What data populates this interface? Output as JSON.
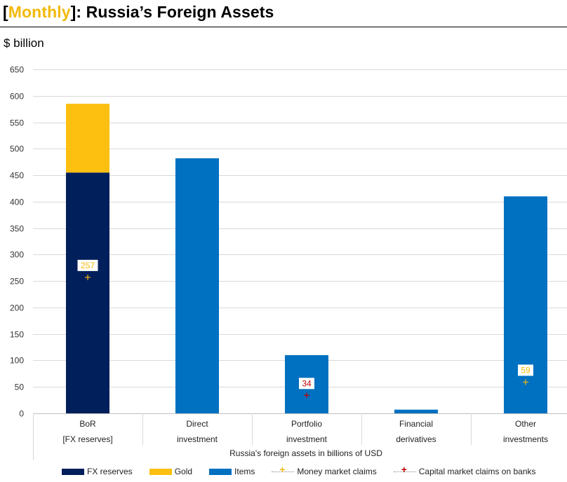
{
  "title_parts": {
    "open_bracket": "[",
    "tag": "Monthly",
    "close_bracket": "]",
    "rest": ": Russia’s Foreign Assets"
  },
  "unit_label": "$ billion",
  "colors": {
    "fx_reserves": "#001f5b",
    "gold": "#fdc010",
    "items": "#0070c0",
    "money_market": "#f2b90a",
    "capital_market": "#c00000",
    "accent": "#f2b90a"
  },
  "chart_data": {
    "type": "bar",
    "stacked": true,
    "title": "[Monthly]: Russia’s Foreign Assets",
    "ylabel": "$ billion",
    "xlabel": "Russia's foreign assets in billions of USD",
    "ylim": [
      0,
      650
    ],
    "yticks": [
      0,
      50,
      100,
      150,
      200,
      250,
      300,
      350,
      400,
      450,
      500,
      550,
      600,
      650
    ],
    "grid": true,
    "legend_position": "bottom",
    "categories": [
      {
        "line1": "BoR",
        "line2": "[FX reserves]"
      },
      {
        "line1": "Direct",
        "line2": "investment"
      },
      {
        "line1": "Portfolio",
        "line2": "investment"
      },
      {
        "line1": "Financial",
        "line2": "derivatives"
      },
      {
        "line1": "Other",
        "line2": "investments"
      }
    ],
    "series": [
      {
        "name": "FX reserves",
        "kind": "bar",
        "color_key": "fx_reserves",
        "values": [
          455,
          null,
          null,
          null,
          null
        ]
      },
      {
        "name": "Gold",
        "kind": "bar",
        "color_key": "gold",
        "values": [
          130,
          null,
          null,
          null,
          null
        ]
      },
      {
        "name": "Items",
        "kind": "bar",
        "color_key": "items",
        "values": [
          null,
          482,
          110,
          7,
          410
        ]
      },
      {
        "name": "Money market claims",
        "kind": "marker",
        "color_key": "money_market",
        "values": [
          257,
          null,
          null,
          null,
          59
        ]
      },
      {
        "name": "Capital market claims on banks",
        "kind": "marker",
        "color_key": "capital_market",
        "values": [
          null,
          null,
          34,
          null,
          null
        ]
      }
    ],
    "data_labels": [
      {
        "category": 0,
        "value": 257,
        "text": "257",
        "color_key": "money_market"
      },
      {
        "category": 2,
        "value": 34,
        "text": "34",
        "color_key": "capital_market"
      },
      {
        "category": 4,
        "value": 59,
        "text": "59",
        "color_key": "money_market"
      }
    ]
  }
}
